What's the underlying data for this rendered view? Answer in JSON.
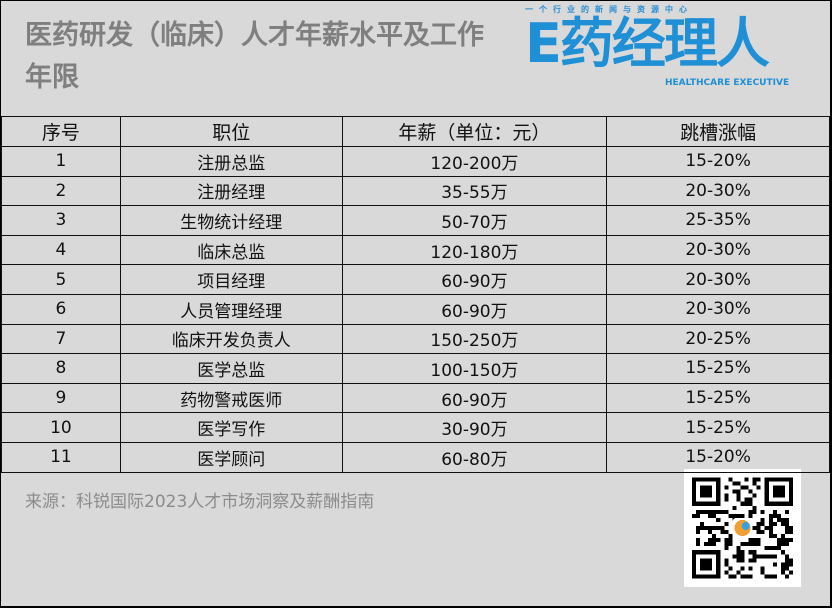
{
  "title": "医药研发（临床）人才年薪水平及工作年限",
  "logo": {
    "tagline": "一个行业的新闻与资源中心",
    "name": "E药经理人",
    "english": "HEALTHCARE EXECUTIVE",
    "color": "#1f8fd6"
  },
  "table": {
    "headers": [
      "序号",
      "职位",
      "年薪（单位：元）",
      "跳槽涨幅"
    ],
    "rows": [
      [
        "1",
        "注册总监",
        "120-200万",
        "15-20%"
      ],
      [
        "2",
        "注册经理",
        "35-55万",
        "20-30%"
      ],
      [
        "3",
        "生物统计经理",
        "50-70万",
        "25-35%"
      ],
      [
        "4",
        "临床总监",
        "120-180万",
        "20-30%"
      ],
      [
        "5",
        "项目经理",
        "60-90万",
        "20-30%"
      ],
      [
        "6",
        "人员管理经理",
        "60-90万",
        "20-30%"
      ],
      [
        "7",
        "临床开发负责人",
        "150-250万",
        "20-25%"
      ],
      [
        "8",
        "医学总监",
        "100-150万",
        "15-25%"
      ],
      [
        "9",
        "药物警戒医师",
        "60-90万",
        "15-25%"
      ],
      [
        "10",
        "医学写作",
        "30-90万",
        "15-25%"
      ],
      [
        "11",
        "医学顾问",
        "60-80万",
        "15-20%"
      ]
    ]
  },
  "source": "来源：科锐国际2023人才市场洞察及薪酬指南",
  "qr_icon": "qr-code"
}
